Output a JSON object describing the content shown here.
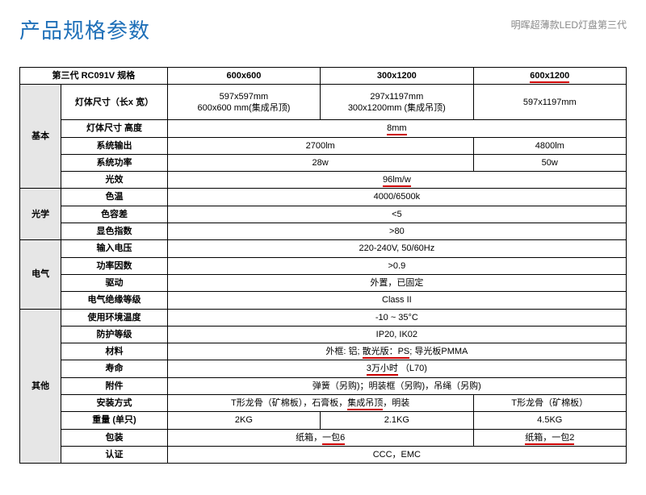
{
  "header": {
    "title": "产品规格参数",
    "subtitle": "明晖超薄款LED灯盘第三代"
  },
  "colors": {
    "title": "#1e6fb8",
    "subtitle": "#888888",
    "underline": "#cc0000",
    "group_bg": "#e6e6e6",
    "border": "#000000"
  },
  "columns": {
    "main": "第三代 RC091V 规格",
    "c2": "600x600",
    "c3": "300x1200",
    "c4": "600x1200"
  },
  "groups": {
    "basic": "基本",
    "optical": "光学",
    "electrical": "电气",
    "other": "其他"
  },
  "labels": {
    "body_size": "灯体尺寸（长x 宽）",
    "body_height": "灯体尺寸 高度",
    "sys_output": "系统输出",
    "sys_power": "系统功率",
    "efficacy": "光效",
    "cct": "色温",
    "sdcm": "色容差",
    "cri": "显色指数",
    "vin": "输入电压",
    "pf": "功率因数",
    "driver": "驱动",
    "ins_class": "电气绝缘等级",
    "ambient": "使用环境温度",
    "ip": "防护等级",
    "material": "材料",
    "lifetime": "寿命",
    "accessory": "附件",
    "install": "安装方式",
    "weight": "重量 (单只)",
    "packaging": "包装",
    "cert": "认证"
  },
  "values": {
    "body_size_c2_line1": "597x597mm",
    "body_size_c2_line2": "600x600 mm(集成吊顶)",
    "body_size_c3_line1": "297x1197mm",
    "body_size_c3_line2": "300x1200mm (集成吊顶)",
    "body_size_c4": "597x1197mm",
    "body_height": "8mm",
    "sys_output_c23": "2700lm",
    "sys_output_c4": "4800lm",
    "sys_power_c23": "28w",
    "sys_power_c4": "50w",
    "efficacy": "96lm/w",
    "cct": "4000/6500k",
    "sdcm": "<5",
    "cri": ">80",
    "vin": "220-240V, 50/60Hz",
    "pf": ">0.9",
    "driver": "外置，已固定",
    "ins_class": "Class II",
    "ambient": "-10 ~ 35°C",
    "ip": "IP20, IK02",
    "material_pre": "外框: 铝; ",
    "material_mid": "散光版：PS",
    "material_post": "; 导光板PMMA",
    "lifetime_main": "3万小时",
    "lifetime_suffix": "（L70)",
    "accessory": "弹簧（另购)；明装框（另购)，吊绳（另购)",
    "install_c23_pre": "T形龙骨（矿棉板），石膏板，",
    "install_c23_mid": "集成吊顶",
    "install_c23_post": "，明装",
    "install_c4": "T形龙骨（矿棉板）",
    "weight_c2": "2KG",
    "weight_c3": "2.1KG",
    "weight_c4": "4.5KG",
    "packaging_c23_pre": "纸箱，",
    "packaging_c23_mid": "一包6",
    "packaging_c4": "纸箱，一包2",
    "cert": "CCC，EMC"
  }
}
